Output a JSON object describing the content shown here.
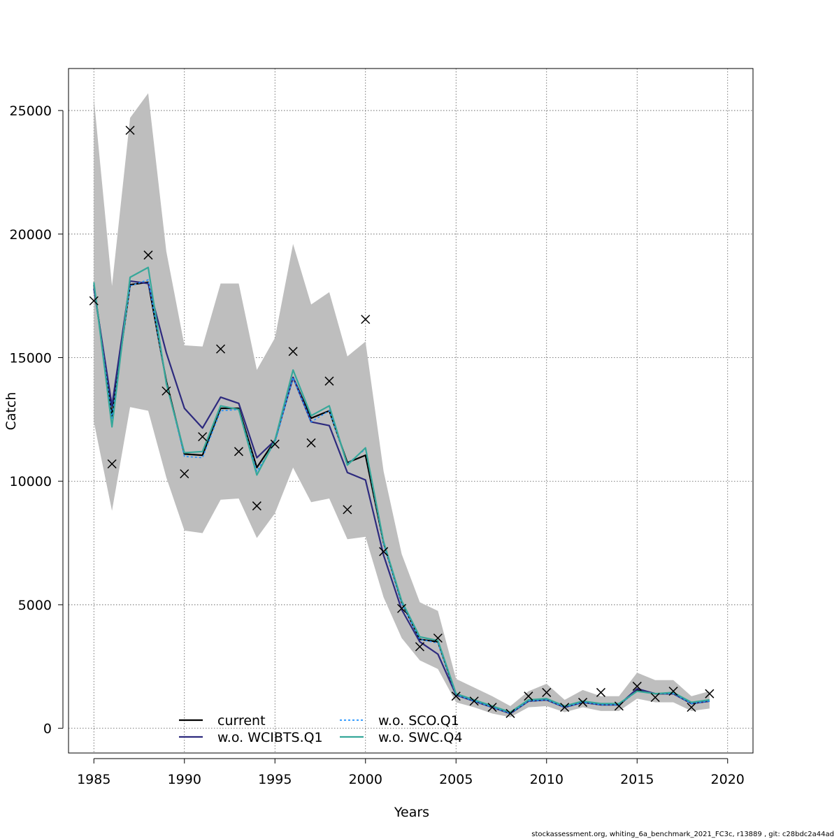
{
  "chart_data": {
    "type": "line",
    "title": "",
    "xlabel": "Years",
    "ylabel": "Catch",
    "xlim": [
      1983.6,
      2021.4
    ],
    "ylim": [
      -1000,
      26700
    ],
    "x_ticks": [
      1985,
      1990,
      1995,
      2000,
      2005,
      2010,
      2015,
      2020
    ],
    "x_tick_labels": [
      "1985",
      "1990",
      "1995",
      "2000",
      "2005",
      "2010",
      "2015",
      "2020"
    ],
    "y_ticks": [
      0,
      5000,
      10000,
      15000,
      20000,
      25000
    ],
    "y_tick_labels": [
      "0",
      "5000",
      "10000",
      "15000",
      "20000",
      "25000"
    ],
    "grid": true,
    "years": [
      1985,
      1986,
      1987,
      1988,
      1989,
      1990,
      1991,
      1992,
      1993,
      1994,
      1995,
      1996,
      1997,
      1998,
      1999,
      2000,
      2001,
      2002,
      2003,
      2004,
      2005,
      2006,
      2007,
      2008,
      2009,
      2010,
      2011,
      2012,
      2013,
      2014,
      2015,
      2016,
      2017,
      2018,
      2019
    ],
    "band": {
      "name": "confidence interval",
      "color": "#bebebe",
      "upper": [
        25500,
        17900,
        24700,
        25700,
        19300,
        15500,
        15450,
        18000,
        18000,
        14500,
        15800,
        19600,
        17150,
        17650,
        15050,
        15650,
        10400,
        7050,
        5100,
        4750,
        2000,
        1650,
        1300,
        900,
        1500,
        1800,
        1150,
        1550,
        1300,
        1300,
        2250,
        1950,
        1950,
        1300,
        1500
      ],
      "lower": [
        12400,
        8800,
        13000,
        12850,
        10150,
        8000,
        7900,
        9250,
        9300,
        7700,
        8700,
        10550,
        9150,
        9300,
        7650,
        7750,
        5300,
        3650,
        2750,
        2400,
        1050,
        850,
        600,
        450,
        850,
        900,
        650,
        850,
        700,
        700,
        1200,
        1050,
        1050,
        700,
        800
      ]
    },
    "observed": {
      "name": "observed catch",
      "marker": "x",
      "values": [
        17300,
        10700,
        24200,
        19150,
        13650,
        10300,
        11800,
        15350,
        11200,
        9000,
        11500,
        15250,
        11550,
        14050,
        8850,
        16550,
        7150,
        4850,
        3300,
        3650,
        1300,
        1100,
        850,
        600,
        1300,
        1450,
        850,
        1050,
        1450,
        900,
        1700,
        1250,
        1500,
        850,
        1400
      ]
    },
    "series": [
      {
        "name": "current",
        "color": "#000000",
        "dash": "",
        "values": [
          17950,
          12650,
          17950,
          18050,
          14050,
          11100,
          11050,
          12950,
          12950,
          10550,
          11650,
          14200,
          12550,
          12850,
          10750,
          11050,
          7500,
          5100,
          3600,
          3500,
          1350,
          1100,
          850,
          600,
          1100,
          1150,
          850,
          1050,
          950,
          950,
          1550,
          1400,
          1400,
          1000,
          1100
        ]
      },
      {
        "name": "w.o. WCIBTS.Q1",
        "color": "#2d2a7e",
        "dash": "",
        "values": [
          17800,
          13050,
          18100,
          18000,
          15200,
          12950,
          12150,
          13400,
          13150,
          10950,
          11650,
          14200,
          12400,
          12250,
          10350,
          10050,
          7000,
          4800,
          3500,
          3000,
          1350,
          1100,
          850,
          600,
          1100,
          1150,
          850,
          1050,
          950,
          950,
          1600,
          1400,
          1400,
          1000,
          1100
        ]
      },
      {
        "name": "w.o. SCO.Q1",
        "color": "#1e90ff",
        "dash": "3,3",
        "values": [
          17950,
          12550,
          17900,
          18150,
          14000,
          11000,
          10950,
          12850,
          12900,
          10400,
          11550,
          14200,
          12400,
          12850,
          10700,
          11300,
          7450,
          5050,
          3600,
          3450,
          1350,
          1100,
          850,
          600,
          1100,
          1150,
          850,
          1050,
          950,
          950,
          1500,
          1400,
          1400,
          1000,
          1100
        ]
      },
      {
        "name": "w.o. SWC.Q4",
        "color": "#36a89a",
        "dash": "",
        "values": [
          18050,
          12200,
          18250,
          18650,
          13950,
          11150,
          11200,
          13050,
          12900,
          10250,
          11650,
          14500,
          12650,
          13050,
          10650,
          11350,
          7550,
          5150,
          3700,
          3550,
          1400,
          1150,
          900,
          650,
          1150,
          1200,
          900,
          1100,
          1000,
          1000,
          1500,
          1400,
          1450,
          1050,
          1150
        ]
      }
    ],
    "legend": {
      "position": "bottom-center",
      "entries": [
        "current",
        "w.o. WCIBTS.Q1",
        "w.o. SCO.Q1",
        "w.o. SWC.Q4"
      ]
    }
  },
  "footer": {
    "text": "stockassessment.org, whiting_6a_benchmark_2021_FC3c, r13889 , git: c28bdc2a44ad"
  }
}
